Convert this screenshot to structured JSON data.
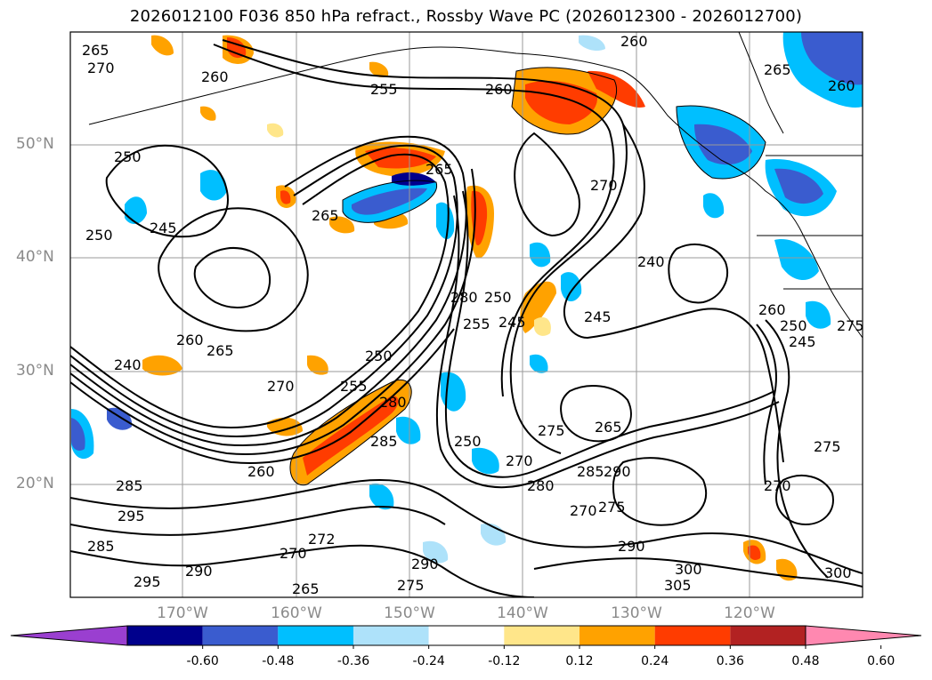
{
  "title": "2026012100 F036 850 hPa refract., Rossby Wave PC (2026012300 - 2026012700)",
  "lat_labels": [
    "50°N",
    "40°N",
    "30°N",
    "20°N"
  ],
  "lon_labels": [
    "170°W",
    "160°W",
    "150°W",
    "140°W",
    "130°W",
    "120°W"
  ],
  "contour_labels": [
    "265",
    "270",
    "260",
    "255",
    "260",
    "260",
    "265",
    "250",
    "265",
    "245",
    "250",
    "265",
    "270",
    "260",
    "280",
    "255",
    "250",
    "245",
    "240",
    "245",
    "260",
    "265",
    "270",
    "275",
    "250",
    "255",
    "280",
    "240",
    "260",
    "250",
    "285",
    "265",
    "270",
    "275",
    "285",
    "290",
    "260",
    "280",
    "275",
    "285",
    "295",
    "290",
    "295",
    "270",
    "275",
    "290",
    "300",
    "305",
    "300",
    "270",
    "275",
    "250",
    "245",
    "285",
    "290",
    "270",
    "272",
    "265"
  ],
  "colorbar": {
    "ticks": [
      "-0.60",
      "-0.48",
      "-0.36",
      "-0.24",
      "-0.12",
      "0.12",
      "0.24",
      "0.36",
      "0.48",
      "0.60"
    ],
    "colors": [
      "#9a3fd0",
      "#00008c",
      "#3a5ccf",
      "#00bfff",
      "#aee2fa",
      "#ffffff",
      "#ffe68a",
      "#ffa200",
      "#ff3c00",
      "#b22222",
      "#ff88b0"
    ]
  }
}
